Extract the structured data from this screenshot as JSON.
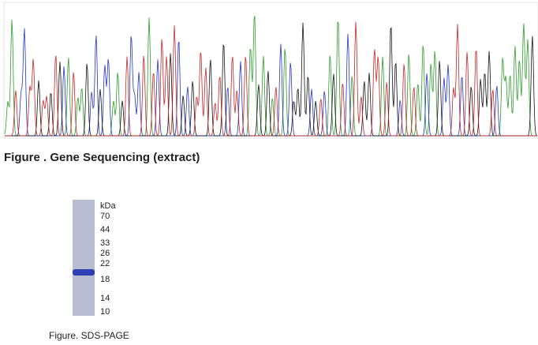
{
  "gene_figure": {
    "caption": "Figure . Gene Sequencing (extract)"
  },
  "sds_figure": {
    "unit": "kDa",
    "markers": [
      "70",
      "44",
      "33",
      "26",
      "22",
      "18",
      "14",
      "10"
    ],
    "caption": "Figure. SDS-PAGE"
  }
}
